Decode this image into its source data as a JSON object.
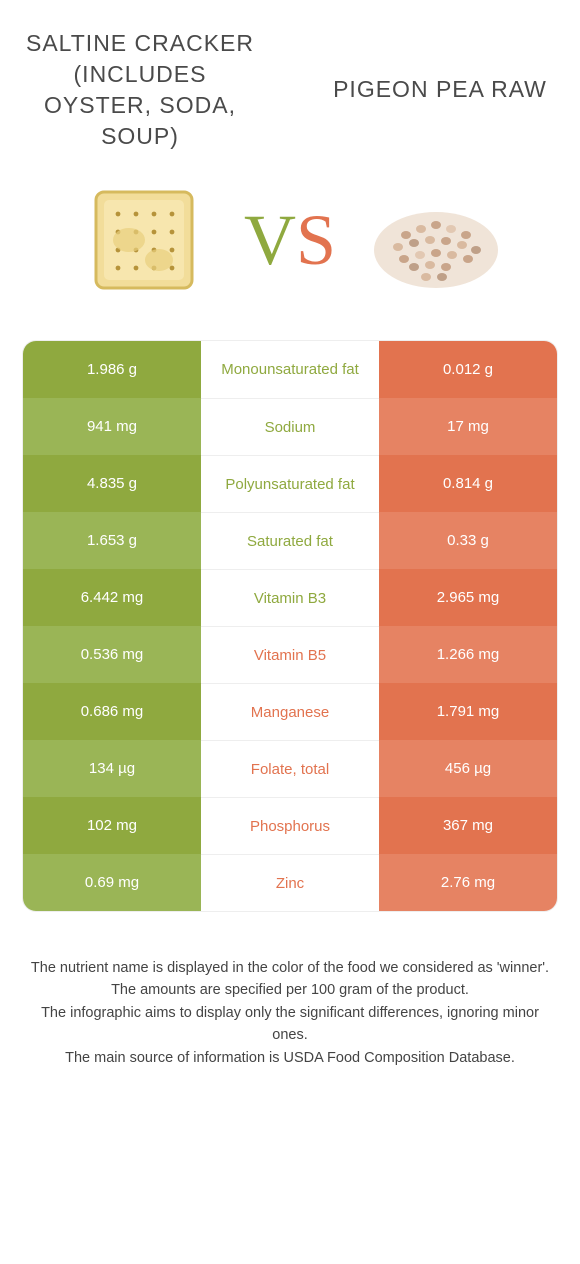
{
  "colors": {
    "left": "#8fa93f",
    "left_alt": "#9ab556",
    "right": "#e2734f",
    "right_alt": "#e68363",
    "text": "#4a4a4a"
  },
  "foods": {
    "left": {
      "title": "Saltine cracker (includes oyster, soda, soup)"
    },
    "right": {
      "title": "Pigeon pea raw"
    }
  },
  "vs": {
    "v": "V",
    "s": "S"
  },
  "rows": [
    {
      "label": "Monounsaturated fat",
      "left": "1.986 g",
      "right": "0.012 g",
      "winner": "left"
    },
    {
      "label": "Sodium",
      "left": "941 mg",
      "right": "17 mg",
      "winner": "left"
    },
    {
      "label": "Polyunsaturated fat",
      "left": "4.835 g",
      "right": "0.814 g",
      "winner": "left"
    },
    {
      "label": "Saturated fat",
      "left": "1.653 g",
      "right": "0.33 g",
      "winner": "left"
    },
    {
      "label": "Vitamin B3",
      "left": "6.442 mg",
      "right": "2.965 mg",
      "winner": "left"
    },
    {
      "label": "Vitamin B5",
      "left": "0.536 mg",
      "right": "1.266 mg",
      "winner": "right"
    },
    {
      "label": "Manganese",
      "left": "0.686 mg",
      "right": "1.791 mg",
      "winner": "right"
    },
    {
      "label": "Folate, total",
      "left": "134 µg",
      "right": "456 µg",
      "winner": "right"
    },
    {
      "label": "Phosphorus",
      "left": "102 mg",
      "right": "367 mg",
      "winner": "right"
    },
    {
      "label": "Zinc",
      "left": "0.69 mg",
      "right": "2.76 mg",
      "winner": "right"
    }
  ],
  "footer": {
    "l1": "The nutrient name is displayed in the color of the food we considered as 'winner'.",
    "l2": "The amounts are specified per 100 gram of the product.",
    "l3": "The infographic aims to display only the significant differences, ignoring minor ones.",
    "l4": "The main source of information is USDA Food Composition Database."
  }
}
